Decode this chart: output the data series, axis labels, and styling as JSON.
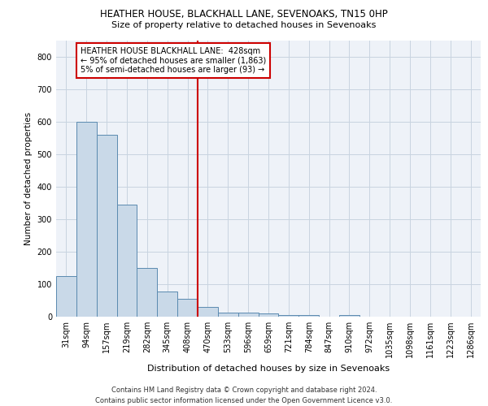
{
  "title1": "HEATHER HOUSE, BLACKHALL LANE, SEVENOAKS, TN15 0HP",
  "title2": "Size of property relative to detached houses in Sevenoaks",
  "xlabel": "Distribution of detached houses by size in Sevenoaks",
  "ylabel": "Number of detached properties",
  "bar_labels": [
    "31sqm",
    "94sqm",
    "157sqm",
    "219sqm",
    "282sqm",
    "345sqm",
    "408sqm",
    "470sqm",
    "533sqm",
    "596sqm",
    "659sqm",
    "721sqm",
    "784sqm",
    "847sqm",
    "910sqm",
    "972sqm",
    "1035sqm",
    "1098sqm",
    "1161sqm",
    "1223sqm",
    "1286sqm"
  ],
  "bar_values": [
    125,
    600,
    560,
    345,
    150,
    77,
    55,
    30,
    13,
    12,
    10,
    5,
    5,
    0,
    5,
    0,
    0,
    0,
    0,
    0,
    0
  ],
  "bar_color": "#c9d9e8",
  "bar_edge_color": "#5a8ab0",
  "property_line_x": 6.5,
  "property_line_label": "HEATHER HOUSE BLACKHALL LANE:  428sqm",
  "annotation_line1": "← 95% of detached houses are smaller (1,863)",
  "annotation_line2": "5% of semi-detached houses are larger (93) →",
  "vline_color": "#cc0000",
  "annotation_box_color": "#cc0000",
  "ylim": [
    0,
    850
  ],
  "yticks": [
    0,
    100,
    200,
    300,
    400,
    500,
    600,
    700,
    800
  ],
  "grid_color": "#c8d4e0",
  "background_color": "#eef2f8",
  "footer1": "Contains HM Land Registry data © Crown copyright and database right 2024.",
  "footer2": "Contains public sector information licensed under the Open Government Licence v3.0."
}
